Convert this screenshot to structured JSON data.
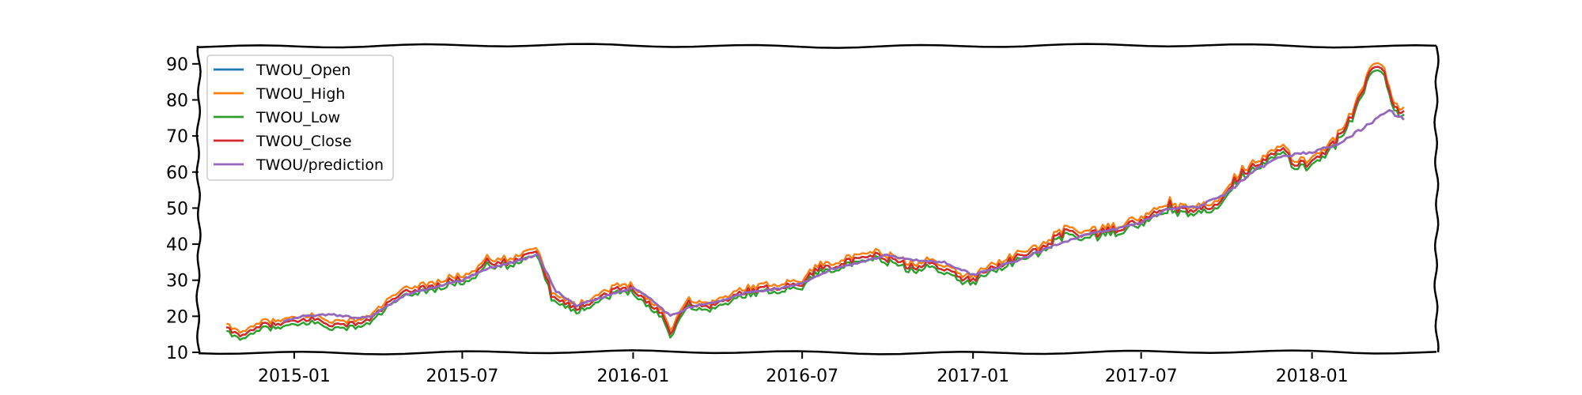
{
  "chart_data": {
    "type": "line",
    "title": "",
    "xlabel": "",
    "ylabel": "",
    "x_start": "2014-10-20",
    "x_end": "2018-04-10",
    "xlim": [
      "2014-09-20",
      "2018-05-15"
    ],
    "ylim": [
      10,
      95
    ],
    "y_ticks": [
      10,
      20,
      30,
      40,
      50,
      60,
      70,
      80,
      90
    ],
    "x_ticks": [
      "2015-01",
      "2015-07",
      "2016-01",
      "2016-07",
      "2017-01",
      "2017-07",
      "2018-01"
    ],
    "grid": false,
    "legend_position": "top-left",
    "style": "xkcd",
    "close_anchors": [
      [
        "2014-10-20",
        16.5
      ],
      [
        "2014-11-01",
        15.0
      ],
      [
        "2014-11-15",
        15.5
      ],
      [
        "2014-12-01",
        18.0
      ],
      [
        "2014-12-12",
        17.5
      ],
      [
        "2014-12-20",
        18.0
      ],
      [
        "2015-01-05",
        18.5
      ],
      [
        "2015-01-20",
        19.5
      ],
      [
        "2015-02-05",
        18.0
      ],
      [
        "2015-02-20",
        17.5
      ],
      [
        "2015-03-05",
        18.0
      ],
      [
        "2015-03-20",
        18.5
      ],
      [
        "2015-04-05",
        22.0
      ],
      [
        "2015-04-20",
        25.0
      ],
      [
        "2015-05-05",
        27.0
      ],
      [
        "2015-05-20",
        28.0
      ],
      [
        "2015-06-05",
        28.5
      ],
      [
        "2015-06-20",
        30.0
      ],
      [
        "2015-07-05",
        30.5
      ],
      [
        "2015-07-15",
        32.0
      ],
      [
        "2015-07-25",
        35.5
      ],
      [
        "2015-08-05",
        34.0
      ],
      [
        "2015-08-15",
        35.0
      ],
      [
        "2015-08-25",
        34.5
      ],
      [
        "2015-09-05",
        37.0
      ],
      [
        "2015-09-15",
        38.5
      ],
      [
        "2015-09-25",
        35.0
      ],
      [
        "2015-10-05",
        26.0
      ],
      [
        "2015-10-20",
        24.0
      ],
      [
        "2015-11-01",
        22.0
      ],
      [
        "2015-11-15",
        24.0
      ],
      [
        "2015-12-01",
        26.0
      ],
      [
        "2015-12-15",
        27.5
      ],
      [
        "2016-01-01",
        28.0
      ],
      [
        "2016-01-15",
        24.0
      ],
      [
        "2016-02-01",
        21.0
      ],
      [
        "2016-02-10",
        15.0
      ],
      [
        "2016-02-20",
        20.5
      ],
      [
        "2016-03-01",
        24.0
      ],
      [
        "2016-03-15",
        22.5
      ],
      [
        "2016-04-01",
        23.5
      ],
      [
        "2016-04-15",
        25.0
      ],
      [
        "2016-05-01",
        27.0
      ],
      [
        "2016-05-15",
        27.5
      ],
      [
        "2016-06-01",
        28.0
      ],
      [
        "2016-06-15",
        28.5
      ],
      [
        "2016-07-01",
        29.0
      ],
      [
        "2016-07-15",
        33.0
      ],
      [
        "2016-08-01",
        34.0
      ],
      [
        "2016-08-15",
        35.0
      ],
      [
        "2016-09-01",
        35.5
      ],
      [
        "2016-09-15",
        37.0
      ],
      [
        "2016-10-01",
        36.0
      ],
      [
        "2016-10-15",
        35.0
      ],
      [
        "2016-11-01",
        33.0
      ],
      [
        "2016-11-15",
        35.0
      ],
      [
        "2016-12-01",
        33.5
      ],
      [
        "2016-12-15",
        31.0
      ],
      [
        "2017-01-01",
        30.0
      ],
      [
        "2017-01-15",
        33.0
      ],
      [
        "2017-02-01",
        34.5
      ],
      [
        "2017-02-15",
        36.0
      ],
      [
        "2017-03-01",
        37.5
      ],
      [
        "2017-03-15",
        38.5
      ],
      [
        "2017-04-01",
        42.0
      ],
      [
        "2017-04-15",
        44.0
      ],
      [
        "2017-05-01",
        42.5
      ],
      [
        "2017-05-15",
        43.0
      ],
      [
        "2017-06-01",
        44.0
      ],
      [
        "2017-06-15",
        45.0
      ],
      [
        "2017-07-01",
        46.5
      ],
      [
        "2017-07-15",
        48.0
      ],
      [
        "2017-08-01",
        51.0
      ],
      [
        "2017-08-15",
        49.0
      ],
      [
        "2017-09-01",
        49.5
      ],
      [
        "2017-09-15",
        50.0
      ],
      [
        "2017-10-01",
        55.0
      ],
      [
        "2017-10-15",
        59.0
      ],
      [
        "2017-11-01",
        62.5
      ],
      [
        "2017-11-15",
        64.0
      ],
      [
        "2017-12-01",
        66.0
      ],
      [
        "2017-12-10",
        63.0
      ],
      [
        "2017-12-20",
        62.0
      ],
      [
        "2018-01-01",
        63.0
      ],
      [
        "2018-01-15",
        66.0
      ],
      [
        "2018-02-01",
        70.0
      ],
      [
        "2018-02-10",
        74.0
      ],
      [
        "2018-02-20",
        80.0
      ],
      [
        "2018-03-01",
        86.0
      ],
      [
        "2018-03-10",
        89.0
      ],
      [
        "2018-03-20",
        88.0
      ],
      [
        "2018-03-28",
        80.0
      ],
      [
        "2018-04-05",
        77.0
      ],
      [
        "2018-04-10",
        77.0
      ]
    ],
    "prediction_anchors": [
      [
        "2014-12-20",
        18.5
      ],
      [
        "2015-01-10",
        20.0
      ],
      [
        "2015-02-10",
        20.5
      ],
      [
        "2015-03-10",
        19.5
      ],
      [
        "2015-03-25",
        20.0
      ],
      [
        "2015-05-01",
        26.0
      ],
      [
        "2015-06-01",
        28.0
      ],
      [
        "2015-07-01",
        30.0
      ],
      [
        "2015-08-01",
        33.5
      ],
      [
        "2015-09-01",
        35.5
      ],
      [
        "2015-09-20",
        37.0
      ],
      [
        "2015-10-10",
        27.0
      ],
      [
        "2015-11-01",
        23.0
      ],
      [
        "2015-12-01",
        25.5
      ],
      [
        "2016-01-01",
        28.0
      ],
      [
        "2016-01-20",
        25.0
      ],
      [
        "2016-02-10",
        20.0
      ],
      [
        "2016-03-01",
        22.5
      ],
      [
        "2016-04-01",
        24.0
      ],
      [
        "2016-05-01",
        26.5
      ],
      [
        "2016-06-01",
        27.5
      ],
      [
        "2016-07-01",
        29.0
      ],
      [
        "2016-08-01",
        33.0
      ],
      [
        "2016-09-01",
        35.0
      ],
      [
        "2016-10-01",
        37.0
      ],
      [
        "2016-11-01",
        35.5
      ],
      [
        "2016-12-01",
        35.0
      ],
      [
        "2017-01-01",
        31.5
      ],
      [
        "2017-02-01",
        34.0
      ],
      [
        "2017-03-01",
        36.5
      ],
      [
        "2017-04-01",
        40.0
      ],
      [
        "2017-05-01",
        42.5
      ],
      [
        "2017-06-01",
        44.0
      ],
      [
        "2017-07-01",
        46.0
      ],
      [
        "2017-08-01",
        50.0
      ],
      [
        "2017-09-01",
        50.5
      ],
      [
        "2017-10-01",
        54.0
      ],
      [
        "2017-11-01",
        60.5
      ],
      [
        "2017-12-01",
        64.5
      ],
      [
        "2018-01-01",
        65.5
      ],
      [
        "2018-02-01",
        68.0
      ],
      [
        "2018-03-01",
        73.0
      ],
      [
        "2018-03-25",
        77.0
      ],
      [
        "2018-04-10",
        74.5
      ]
    ],
    "series": [
      {
        "name": "TWOU_Open",
        "color": "#1f77b4",
        "values_from": "close_anchors",
        "offset": 0.0
      },
      {
        "name": "TWOU_High",
        "color": "#ff7f0e",
        "values_from": "close_anchors",
        "offset": 1.0
      },
      {
        "name": "TWOU_Low",
        "color": "#2ca02c",
        "values_from": "close_anchors",
        "offset": -1.0
      },
      {
        "name": "TWOU_Close",
        "color": "#d62728",
        "values_from": "close_anchors",
        "offset": 0.0
      },
      {
        "name": "TWOU/prediction",
        "color": "#9467bd",
        "values_from": "prediction_anchors",
        "offset": 0.0
      }
    ],
    "legend": {
      "entries": [
        "TWOU_Open",
        "TWOU_High",
        "TWOU_Low",
        "TWOU_Close",
        "TWOU/prediction"
      ]
    }
  }
}
